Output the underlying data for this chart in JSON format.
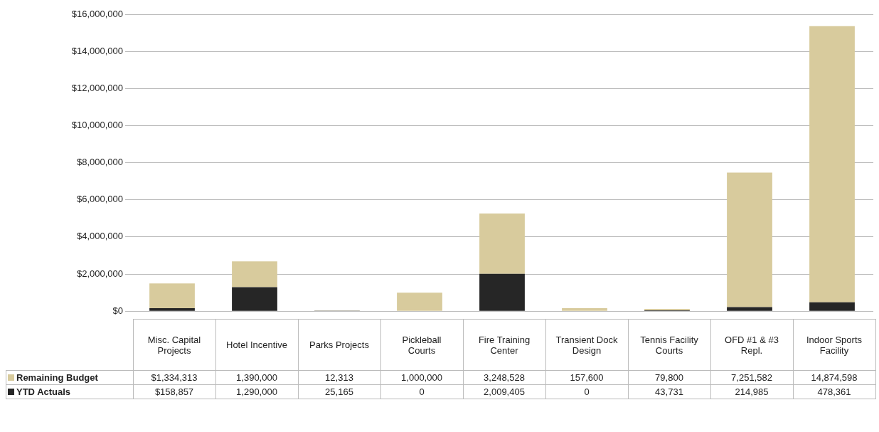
{
  "chart_data": {
    "type": "bar",
    "stacked": true,
    "categories": [
      "Misc. Capital Projects",
      "Hotel Incentive",
      "Parks Projects",
      "Pickleball Courts",
      "Fire Training Center",
      "Transient Dock Design",
      "Tennis Facility Courts",
      "OFD #1 & #3 Repl.",
      "Indoor Sports Facility"
    ],
    "series": [
      {
        "name": "YTD Actuals",
        "color": "#262626",
        "values": [
          158857,
          1290000,
          25165,
          0,
          2009405,
          0,
          43731,
          214985,
          478361
        ],
        "value_labels": [
          "$158,857",
          "1,290,000",
          "25,165",
          "0",
          "2,009,405",
          "0",
          "43,731",
          "214,985",
          "478,361"
        ]
      },
      {
        "name": "Remaining Budget",
        "color": "#d8cb9d",
        "values": [
          1334313,
          1390000,
          12313,
          1000000,
          3248528,
          157600,
          79800,
          7251582,
          14874598
        ],
        "value_labels": [
          "$1,334,313",
          "1,390,000",
          "12,313",
          "1,000,000",
          "3,248,528",
          "157,600",
          "79,800",
          "7,251,582",
          "14,874,598"
        ]
      }
    ],
    "ylim": [
      0,
      16000000
    ],
    "yticks": [
      {
        "value": 0,
        "label": "$0"
      },
      {
        "value": 2000000,
        "label": "$2,000,000"
      },
      {
        "value": 4000000,
        "label": "$4,000,000"
      },
      {
        "value": 6000000,
        "label": "$6,000,000"
      },
      {
        "value": 8000000,
        "label": "$8,000,000"
      },
      {
        "value": 10000000,
        "label": "$10,000,000"
      },
      {
        "value": 12000000,
        "label": "$12,000,000"
      },
      {
        "value": 14000000,
        "label": "$14,000,000"
      },
      {
        "value": 16000000,
        "label": "$16,000,000"
      }
    ],
    "grid": "y",
    "legend": "bottom"
  }
}
